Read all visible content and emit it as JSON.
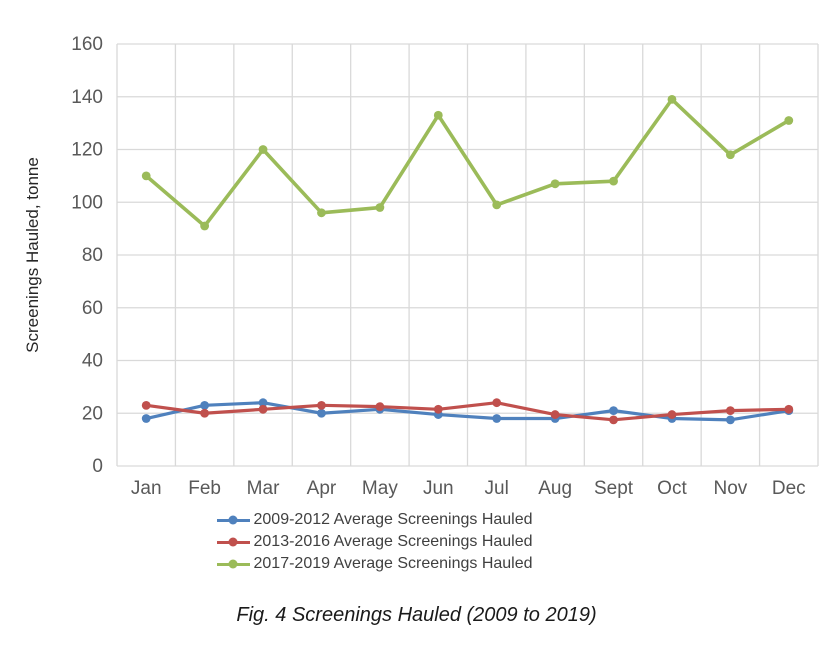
{
  "figure": {
    "caption": "Fig. 4 Screenings Hauled (2009 to 2019)"
  },
  "chart_data": {
    "type": "line",
    "title": "",
    "xlabel": "",
    "ylabel": "Screenings Hauled, tonne",
    "categories": [
      "Jan",
      "Feb",
      "Mar",
      "Apr",
      "May",
      "Jun",
      "Jul",
      "Aug",
      "Sept",
      "Oct",
      "Nov",
      "Dec"
    ],
    "series": [
      {
        "name": "2009-2012 Average Screenings Hauled",
        "color": "#4F81BD",
        "values": [
          18,
          23,
          24,
          20,
          21.5,
          19.5,
          18,
          18,
          21,
          18,
          17.5,
          21
        ]
      },
      {
        "name": "2013-2016 Average Screenings Hauled",
        "color": "#C0504D",
        "values": [
          23,
          20,
          21.5,
          23,
          22.5,
          21.5,
          24,
          19.5,
          17.5,
          19.5,
          21,
          21.5
        ]
      },
      {
        "name": "2017-2019 Average Screenings Hauled",
        "color": "#9BBB59",
        "values": [
          110,
          91,
          120,
          96,
          98,
          133,
          99,
          107,
          108,
          139,
          118,
          131
        ]
      }
    ],
    "ylim": [
      0,
      160
    ],
    "ytick_step": 20,
    "yticks": [
      "0",
      "20",
      "40",
      "60",
      "80",
      "100",
      "120",
      "140",
      "160"
    ],
    "grid": "horizontal-and-vertical",
    "legend_position": "bottom",
    "axis_text_color": "#595959",
    "axis_title_color": "#262626",
    "gridline_color": "#D9D9D9"
  }
}
